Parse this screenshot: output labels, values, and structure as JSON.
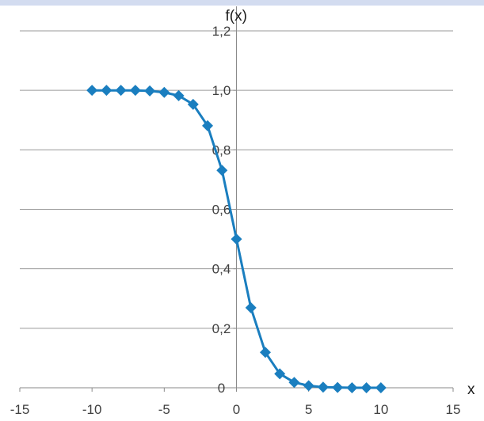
{
  "chart_data": {
    "type": "line",
    "title": "",
    "xlabel": "x",
    "ylabel": "f(x)",
    "xlim": [
      -15,
      15
    ],
    "ylim": [
      0,
      1.2
    ],
    "x_ticks": [
      "-15",
      "-10",
      "-5",
      "0",
      "5",
      "10",
      "15"
    ],
    "y_ticks": [
      "0",
      "0,2",
      "0,4",
      "0,6",
      "0,8",
      "1,0",
      "1,2"
    ],
    "grid": true,
    "legend": "none",
    "marker": "diamond",
    "color": "#1a7ebf",
    "series": [
      {
        "x": [
          -10,
          -9,
          -8,
          -7,
          -6,
          -5,
          -4,
          -3,
          -2,
          -1,
          0,
          1,
          2,
          3,
          4,
          5,
          6,
          7,
          8,
          9,
          10
        ],
        "values": [
          1.0,
          1.0,
          1.0,
          1.0,
          0.998,
          0.993,
          0.982,
          0.953,
          0.881,
          0.731,
          0.5,
          0.269,
          0.119,
          0.047,
          0.018,
          0.007,
          0.002,
          0.001,
          0.0,
          0.0,
          0.0
        ]
      }
    ]
  }
}
